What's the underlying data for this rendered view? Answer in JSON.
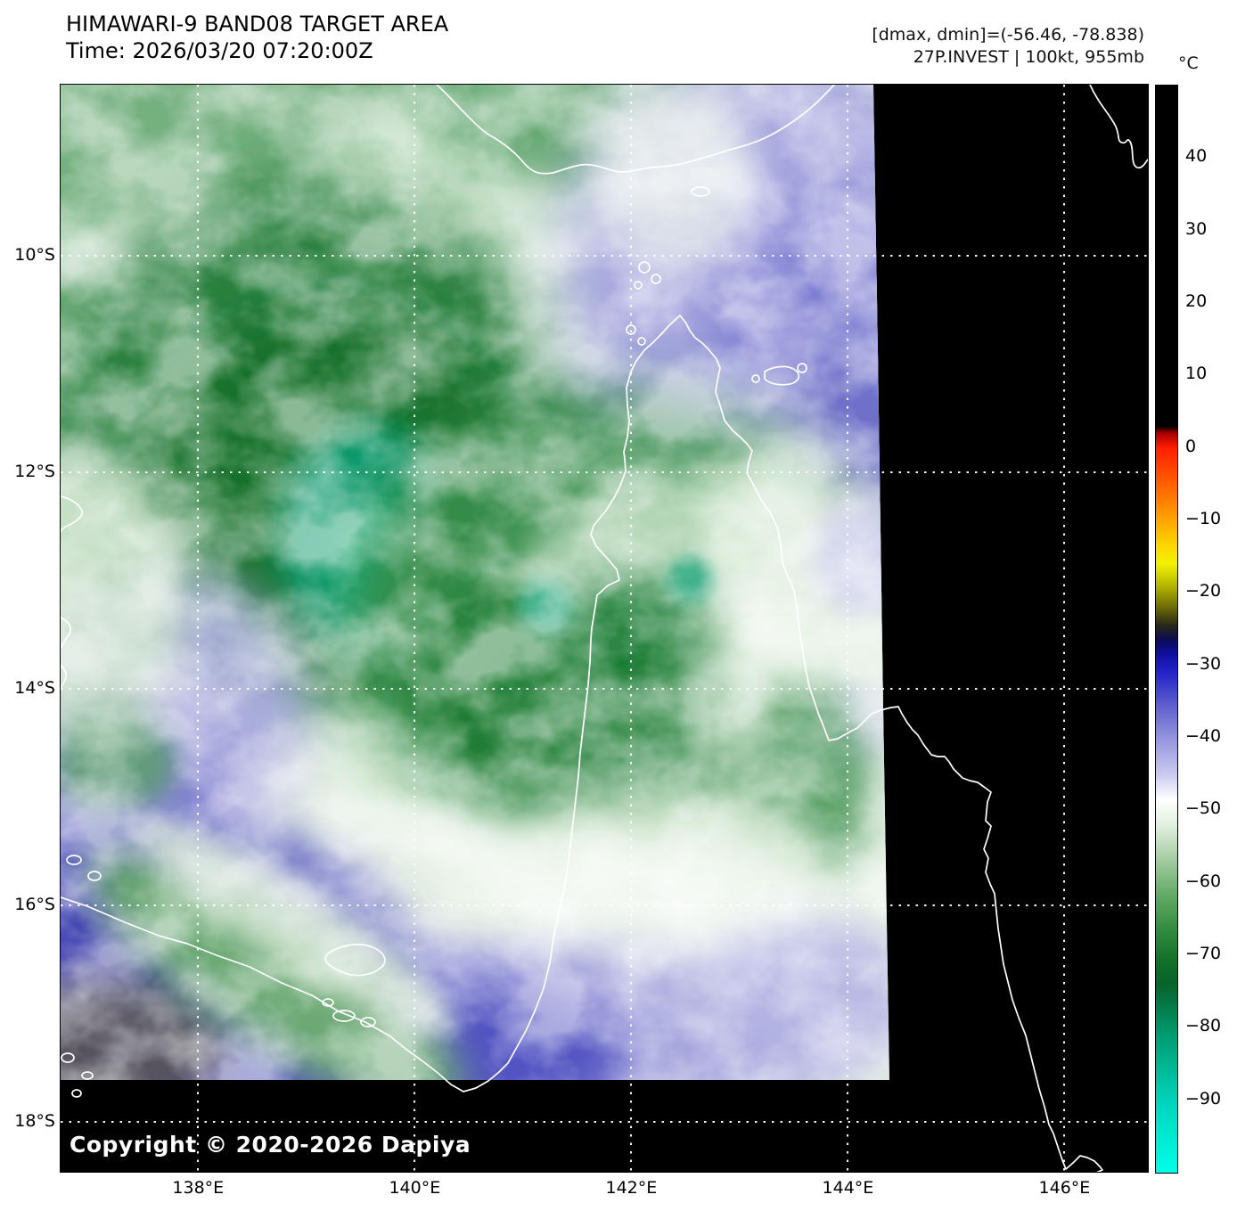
{
  "header": {
    "title": "HIMAWARI-9 BAND08 TARGET AREA",
    "time_label": "Time: 2026/03/20 07:20:00Z",
    "stats_line": "[dmax, dmin]=(-56.46, -78.838)",
    "storm_line": "27P.INVEST | 100kt, 955mb"
  },
  "map": {
    "copyright": "Copyright © 2020-2026 Dapiya",
    "lat_ticks": [
      {
        "value": 10,
        "label": "10°S"
      },
      {
        "value": 12,
        "label": "12°S"
      },
      {
        "value": 14,
        "label": "14°S"
      },
      {
        "value": 16,
        "label": "16°S"
      },
      {
        "value": 18,
        "label": "18°S"
      }
    ],
    "lon_ticks": [
      {
        "value": 138,
        "label": "138°E"
      },
      {
        "value": 140,
        "label": "140°E"
      },
      {
        "value": 142,
        "label": "142°E"
      },
      {
        "value": 144,
        "label": "144°E"
      },
      {
        "value": 146,
        "label": "146°E"
      }
    ]
  },
  "colorbar": {
    "unit": "°C",
    "value_max": 50,
    "value_min": -100,
    "ticks": [
      40,
      30,
      20,
      10,
      0,
      -10,
      -20,
      -30,
      -40,
      -50,
      -60,
      -70,
      -80,
      -90
    ],
    "stops": [
      {
        "value": 50,
        "color": "#000000"
      },
      {
        "value": 3,
        "color": "#000000"
      },
      {
        "value": 2,
        "color": "#a80000"
      },
      {
        "value": 0,
        "color": "#ff1e00"
      },
      {
        "value": -8,
        "color": "#ff8800"
      },
      {
        "value": -13,
        "color": "#ffd000"
      },
      {
        "value": -16,
        "color": "#f2f200"
      },
      {
        "value": -19,
        "color": "#b5b500"
      },
      {
        "value": -22,
        "color": "#6b6b06"
      },
      {
        "value": -24.5,
        "color": "#27271a"
      },
      {
        "value": -26.5,
        "color": "#0b0b55"
      },
      {
        "value": -28.5,
        "color": "#0f0fa0"
      },
      {
        "value": -31,
        "color": "#2323c8"
      },
      {
        "value": -35,
        "color": "#5858cd"
      },
      {
        "value": -40,
        "color": "#9393dd"
      },
      {
        "value": -45,
        "color": "#c9c9ef"
      },
      {
        "value": -48.5,
        "color": "#ffffff"
      },
      {
        "value": -52,
        "color": "#e2f0e0"
      },
      {
        "value": -57,
        "color": "#a2cba0"
      },
      {
        "value": -62,
        "color": "#5fa862"
      },
      {
        "value": -67,
        "color": "#2e893d"
      },
      {
        "value": -71,
        "color": "#106f26"
      },
      {
        "value": -74,
        "color": "#09632a"
      },
      {
        "value": -77,
        "color": "#057a4a"
      },
      {
        "value": -81,
        "color": "#009b70"
      },
      {
        "value": -86,
        "color": "#00bb9a"
      },
      {
        "value": -91,
        "color": "#00d8c2"
      },
      {
        "value": -100,
        "color": "#00ffe8"
      }
    ]
  },
  "chart_data": {
    "type": "heatmap",
    "title": "HIMAWARI-9 BAND08 TARGET AREA",
    "subtitle": "Time: 2026/03/20 07:20:00Z",
    "satellite": "HIMAWARI-9",
    "band": "BAND08",
    "time_utc": "2026/03/20 07:20:00Z",
    "stats": {
      "dmax_c": -56.46,
      "dmin_c": -78.838
    },
    "storm": {
      "id": "27P.INVEST",
      "wind": "100kt",
      "pressure": "955mb"
    },
    "x_axis": {
      "unit": "°E",
      "ticks": [
        138,
        140,
        142,
        144,
        146
      ],
      "range": [
        136.73,
        146.77
      ]
    },
    "y_axis": {
      "unit": "°S",
      "ticks": [
        10,
        12,
        14,
        16,
        18
      ],
      "range": [
        8.42,
        18.46
      ]
    },
    "colorbar": {
      "unit": "°C",
      "range": [
        -100,
        50
      ],
      "tick_step": 10,
      "tick_min": -90,
      "tick_max": 40
    },
    "grid": "white dotted lat/lon graticule every 2 degrees",
    "features": [
      "Large cold cloud shield (brightness temps -60 to -80°C, dark green/teal) centred near 139.5°E 12.6°S",
      "Coldest overshooting tops about -80°C (teal core) near 139.6°E 12.9°S, small teal spots near 141.2°E 13.5°S and 142.6°E 13.3°S",
      "Curved spiral banding of invest 27P over western Cape York Peninsula",
      "Warmer mid-level cloud (lavender, -30 to -45°C) in the northeast corner and across the south",
      "Deep blue (-25 to -35°C) and dark grey surface patch in the southwest (Gulf country)",
      "Black no-data region east of ~144.3°E and south of ~17.6°S with white coastline overlay (Papua New Guinea, Cape York Peninsula, Gulf of Carpentaria, Wellesley Islands)"
    ]
  }
}
